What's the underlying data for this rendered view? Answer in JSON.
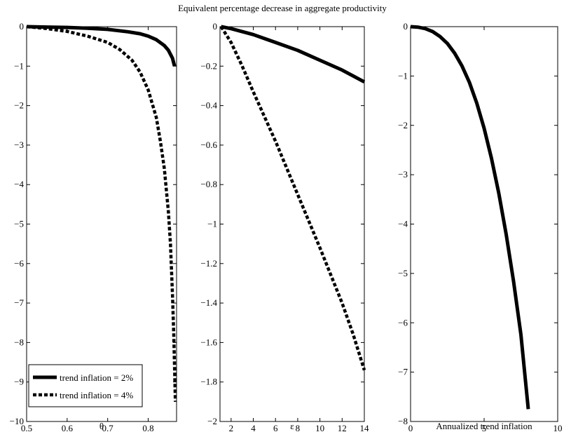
{
  "figure": {
    "title": "Equivalent percentage decrease in aggregate productivity"
  },
  "chart_data": [
    {
      "type": "line",
      "title": "",
      "xlabel": "θ",
      "ylabel": "",
      "xlim": [
        0.5,
        0.87
      ],
      "ylim": [
        -10,
        0
      ],
      "xticks": [
        0.5,
        0.6,
        0.7,
        0.8
      ],
      "yticks": [
        0,
        -1,
        -2,
        -3,
        -4,
        -5,
        -6,
        -7,
        -8,
        -9,
        -10
      ],
      "grid": false,
      "legend": "bottom-left",
      "series": [
        {
          "name": "trend inflation = 2%",
          "style": "solid",
          "x": [
            0.5,
            0.55,
            0.6,
            0.65,
            0.7,
            0.75,
            0.78,
            0.8,
            0.82,
            0.84,
            0.85,
            0.86,
            0.865
          ],
          "y": [
            0,
            -0.01,
            -0.02,
            -0.04,
            -0.07,
            -0.13,
            -0.18,
            -0.24,
            -0.33,
            -0.48,
            -0.6,
            -0.8,
            -1.0
          ]
        },
        {
          "name": "trend inflation = 4%",
          "style": "dotted",
          "x": [
            0.5,
            0.55,
            0.6,
            0.65,
            0.7,
            0.73,
            0.76,
            0.78,
            0.8,
            0.82,
            0.83,
            0.84,
            0.85,
            0.855,
            0.86,
            0.863,
            0.865,
            0.867
          ],
          "y": [
            0,
            -0.05,
            -0.12,
            -0.24,
            -0.4,
            -0.58,
            -0.85,
            -1.15,
            -1.6,
            -2.3,
            -2.9,
            -3.6,
            -4.7,
            -5.5,
            -6.8,
            -7.8,
            -8.6,
            -9.5
          ]
        }
      ]
    },
    {
      "type": "line",
      "title": "",
      "xlabel": "ε",
      "ylabel": "",
      "xlim": [
        1,
        14
      ],
      "ylim": [
        -2,
        0
      ],
      "xticks": [
        2,
        4,
        6,
        8,
        10,
        12,
        14
      ],
      "yticks": [
        0,
        -0.2,
        -0.4,
        -0.6,
        -0.8,
        -1,
        -1.2,
        -1.4,
        -1.6,
        -1.8,
        -2
      ],
      "grid": false,
      "series": [
        {
          "name": "trend inflation = 2%",
          "style": "solid",
          "x": [
            1.1,
            2,
            4,
            6,
            8,
            10,
            12,
            14
          ],
          "y": [
            0,
            -0.01,
            -0.04,
            -0.08,
            -0.12,
            -0.17,
            -0.22,
            -0.28
          ]
        },
        {
          "name": "trend inflation = 4%",
          "style": "dotted",
          "x": [
            1.1,
            2,
            3,
            4,
            6,
            8,
            10,
            12,
            13,
            14
          ],
          "y": [
            0,
            -0.08,
            -0.2,
            -0.33,
            -0.58,
            -0.85,
            -1.12,
            -1.4,
            -1.56,
            -1.74
          ]
        }
      ]
    },
    {
      "type": "line",
      "title": "",
      "xlabel": "Annualized trend inflation",
      "ylabel": "",
      "xlim": [
        0,
        10
      ],
      "ylim": [
        -8,
        0
      ],
      "xticks": [
        0,
        5,
        10
      ],
      "yticks": [
        0,
        -1,
        -2,
        -3,
        -4,
        -5,
        -6,
        -7,
        -8
      ],
      "grid": false,
      "series": [
        {
          "style": "solid",
          "x": [
            0,
            0.5,
            1,
            1.5,
            2,
            2.5,
            3,
            3.5,
            4,
            4.5,
            5,
            5.5,
            6,
            6.5,
            7,
            7.5,
            8
          ],
          "y": [
            0,
            -0.01,
            -0.04,
            -0.1,
            -0.2,
            -0.34,
            -0.54,
            -0.8,
            -1.13,
            -1.55,
            -2.06,
            -2.67,
            -3.38,
            -4.21,
            -5.16,
            -6.24,
            -7.75
          ]
        }
      ]
    }
  ]
}
